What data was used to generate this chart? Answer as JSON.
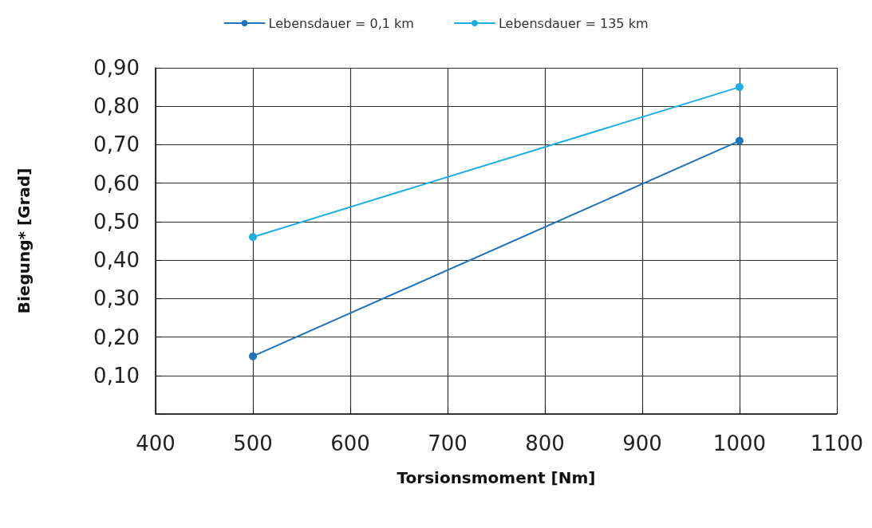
{
  "chart_data": {
    "type": "line",
    "xlabel": "Torsionsmoment [Nm]",
    "ylabel": "Biegung* [Grad]",
    "x": [
      500,
      1000
    ],
    "series": [
      {
        "name": "Lebensdauer = 0,1 km",
        "color": "#1f72bc",
        "values": [
          0.15,
          0.71
        ]
      },
      {
        "name": "Lebensdauer = 135 km",
        "color": "#1eaee3",
        "values": [
          0.46,
          0.85
        ]
      }
    ],
    "xlim": [
      400,
      1100
    ],
    "xticks": [
      400,
      500,
      600,
      700,
      800,
      900,
      1000,
      1100
    ],
    "ylim": [
      0,
      0.9
    ],
    "yticks": [
      {
        "value": 0,
        "label": null
      },
      {
        "value": 0.1,
        "label": "0,10"
      },
      {
        "value": 0.2,
        "label": "0,20"
      },
      {
        "value": 0.3,
        "label": "0,30"
      },
      {
        "value": 0.4,
        "label": "0,40"
      },
      {
        "value": 0.5,
        "label": "0,50"
      },
      {
        "value": 0.6,
        "label": "0,60"
      },
      {
        "value": 0.7,
        "label": "0,70"
      },
      {
        "value": 0.8,
        "label": "0,80"
      },
      {
        "value": 0.9,
        "label": "0,90"
      }
    ],
    "grid": true,
    "legend": "top",
    "marker": "circle",
    "line_style": "solid"
  }
}
